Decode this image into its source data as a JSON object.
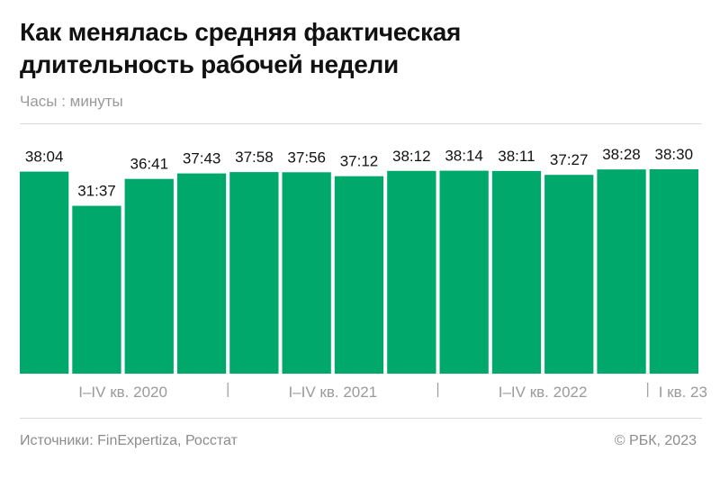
{
  "header": {
    "title_line1": "Как менялась средняя фактическая",
    "title_line2": "длительность рабочей недели",
    "units": "Часы : минуты"
  },
  "footer": {
    "sources": "Источники: FinExpertiza, Росстат",
    "copyright": "© РБК, 2023"
  },
  "colors": {
    "bar": "#00a86b",
    "label": "#111111",
    "axis_text": "#9a9a9a",
    "separator": "#9a9a9a"
  },
  "chart_data": {
    "type": "bar",
    "categories": [
      "I 2020",
      "II 2020",
      "III 2020",
      "IV 2020",
      "I 2021",
      "II 2021",
      "III 2021",
      "IV 2021",
      "I 2022",
      "II 2022",
      "III 2022",
      "IV 2022",
      "I 2023"
    ],
    "value_labels": [
      "38:04",
      "31:37",
      "36:41",
      "37:43",
      "37:58",
      "37:56",
      "37:12",
      "38:12",
      "38:14",
      "38:11",
      "37:27",
      "38:28",
      "38:30"
    ],
    "values_minutes": [
      2284,
      1897,
      2201,
      2263,
      2278,
      2276,
      2232,
      2292,
      2294,
      2291,
      2247,
      2308,
      2310
    ],
    "ylim": [
      0,
      2310
    ],
    "groups": [
      {
        "label": "I–IV кв. 2020",
        "bar_count": 4
      },
      {
        "label": "I–IV кв. 2021",
        "bar_count": 4
      },
      {
        "label": "I–IV кв. 2022",
        "bar_count": 4
      },
      {
        "label": "I кв. 23",
        "bar_count": 1
      }
    ],
    "grid": false,
    "legend": "none"
  }
}
